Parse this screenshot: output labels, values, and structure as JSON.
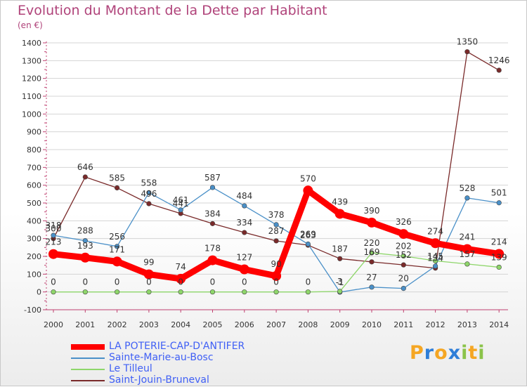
{
  "chart_data": {
    "type": "line",
    "title": "Evolution du Montant de la Dette par Habitant",
    "ylabel": "(en €)",
    "xlabel": "",
    "ylim": [
      -100,
      1400
    ],
    "yticks": [
      -100,
      0,
      100,
      200,
      300,
      400,
      500,
      600,
      700,
      800,
      900,
      1000,
      1100,
      1200,
      1300,
      1400
    ],
    "categories": [
      "2000",
      "2001",
      "2002",
      "2003",
      "2004",
      "2005",
      "2006",
      "2007",
      "2008",
      "2009",
      "2010",
      "2011",
      "2012",
      "2013",
      "2014"
    ],
    "series": [
      {
        "name": "LA POTERIE-CAP-D'ANTIFER",
        "color": "#ff0000",
        "values": [
          213,
          193,
          171,
          99,
          74,
          178,
          127,
          90,
          570,
          439,
          390,
          326,
          274,
          241,
          214
        ]
      },
      {
        "name": "Sainte-Marie-au-Bosc",
        "color": "#4a90c8",
        "values": [
          318,
          288,
          256,
          558,
          461,
          587,
          484,
          378,
          269,
          -1,
          27,
          20,
          145,
          528,
          501
        ]
      },
      {
        "name": "Le Tilleul",
        "color": "#8ed66a",
        "values": [
          0,
          0,
          0,
          0,
          0,
          0,
          0,
          0,
          0,
          3,
          220,
          202,
          175,
          157,
          139
        ]
      },
      {
        "name": "Saint-Jouin-Bruneval",
        "color": "#7a2a2a",
        "values": [
          300,
          646,
          585,
          496,
          441,
          384,
          334,
          287,
          263,
          187,
          169,
          152,
          134,
          1350,
          1246
        ]
      }
    ],
    "data_labels": [
      [
        "213",
        "193",
        "171",
        "99",
        "74",
        "178",
        "127",
        "90",
        "570",
        "439",
        "390",
        "326",
        "274",
        "241",
        "214"
      ],
      [
        "318",
        "288",
        "256",
        "558",
        "461",
        "587",
        "484",
        "378",
        "269",
        "-1",
        "27",
        "20",
        "145",
        "528",
        "501"
      ],
      [
        "0",
        "0",
        "0",
        "0",
        "0",
        "0",
        "0",
        "0",
        "0",
        "3",
        "220",
        "202",
        "",
        "157",
        "139"
      ],
      [
        "300",
        "646",
        "585",
        "496",
        "441",
        "384",
        "334",
        "287",
        "263",
        "187",
        "169",
        "152",
        "134",
        "1350",
        "1246"
      ]
    ]
  },
  "logo": {
    "letters": [
      "P",
      "r",
      "o",
      "x",
      "i",
      "t",
      "i"
    ],
    "colors": [
      "#f5a623",
      "#2f7ed8",
      "#f5a623",
      "#2f7ed8",
      "#8bc34a",
      "#f5a623",
      "#8bc34a"
    ]
  }
}
